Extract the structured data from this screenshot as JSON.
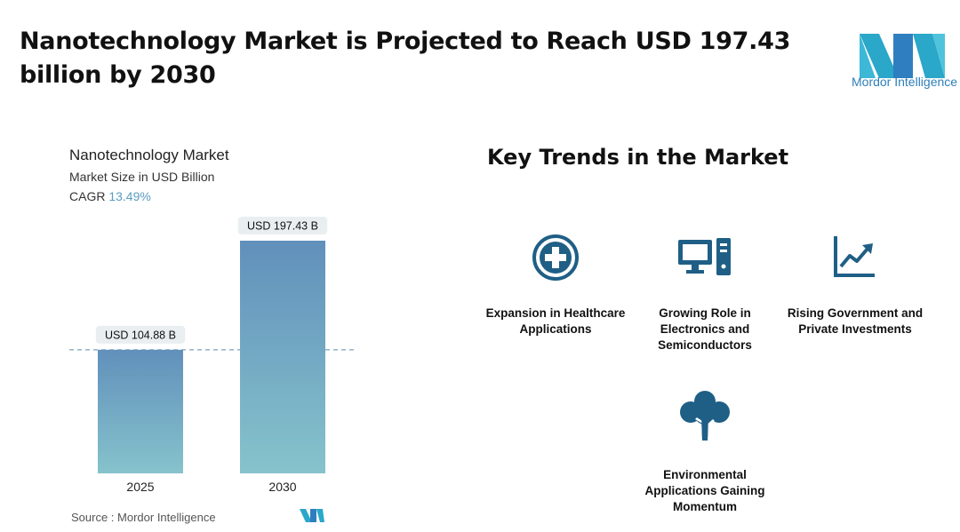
{
  "headline": "Nanotechnology Market is Projected to Reach USD 197.43 billion by 2030",
  "logo": {
    "text": "Mordor Intelligence"
  },
  "chart_data": {
    "type": "bar",
    "title": "Nanotechnology Market",
    "subtitle": "Market Size in USD Billion",
    "cagr_label": "CAGR",
    "cagr_value": "13.49%",
    "categories": [
      "2025",
      "2030"
    ],
    "values": [
      104.88,
      197.43
    ],
    "data_labels": [
      "USD 104.88 B",
      "USD 197.43 B"
    ],
    "ylim": [
      0,
      197.43
    ],
    "grid": false,
    "colors": {
      "bar_top": "#6190bb",
      "bar_bottom": "#86c3cc",
      "dashed_line": "#5a8ea8"
    }
  },
  "source": "Source :  Mordor Intelligence",
  "trends": {
    "title": "Key Trends in the Market",
    "items": [
      {
        "icon": "medical-cross-icon",
        "label": "Expansion in Healthcare Applications"
      },
      {
        "icon": "computer-icon",
        "label": "Growing Role in Electronics and Semiconductors"
      },
      {
        "icon": "trend-up-icon",
        "label": "Rising Government and Private Investments"
      },
      {
        "icon": "tree-icon",
        "label": "Environmental Applications Gaining Momentum"
      }
    ],
    "icon_color": "#1f5f86"
  }
}
